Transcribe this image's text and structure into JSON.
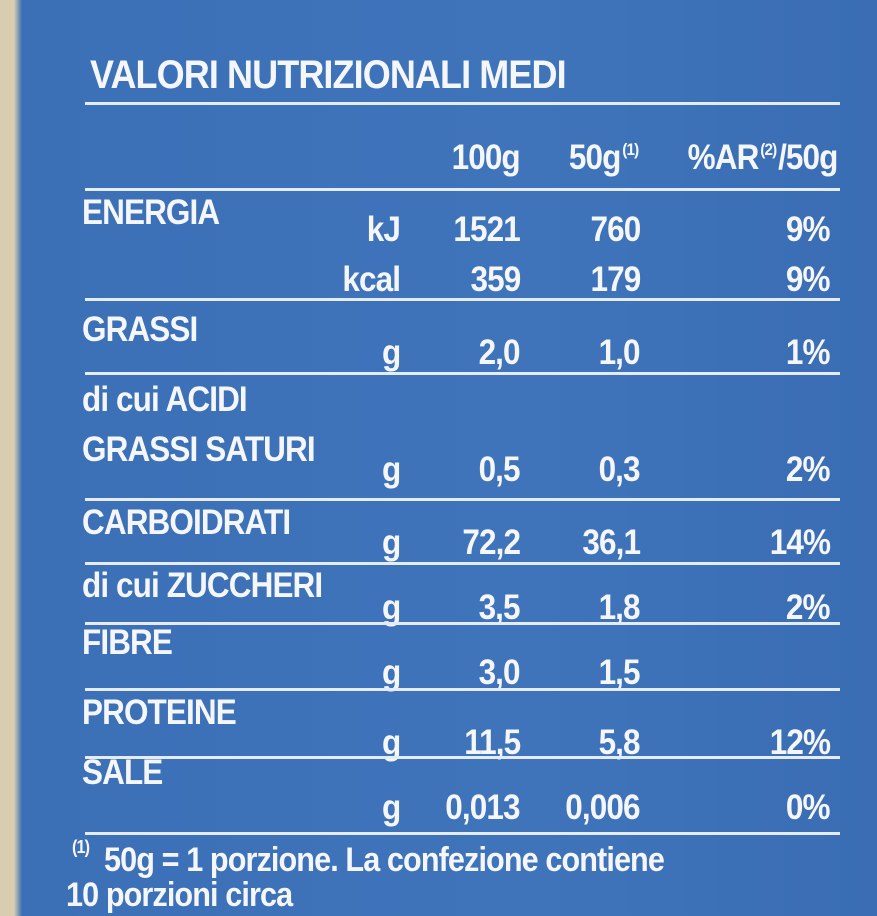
{
  "header": {
    "title": "VALORI NUTRIZIONALI MEDI"
  },
  "table": {
    "columns": [
      {
        "text": "100g"
      },
      {
        "text": "50g",
        "sup": "(1)"
      },
      {
        "text": "%AR",
        "sup": "(2)",
        "after": "/50g"
      }
    ],
    "rows": [
      {
        "name": [
          "ENERGIA"
        ],
        "lines": [
          {
            "unit": "kJ",
            "v100": "1521",
            "v50": "760",
            "ar": "9%"
          },
          {
            "unit": "kcal",
            "v100": "359",
            "v50": "179",
            "ar": "9%"
          }
        ]
      },
      {
        "name": [
          "GRASSI"
        ],
        "lines": [
          {
            "unit": "g",
            "v100": "2,0",
            "v50": "1,0",
            "ar": "1%"
          }
        ]
      },
      {
        "name": [
          "di cui ACIDI",
          "GRASSI SATURI"
        ],
        "lines": [
          {
            "unit": "g",
            "v100": "0,5",
            "v50": "0,3",
            "ar": "2%"
          }
        ]
      },
      {
        "name": [
          "CARBOIDRATI"
        ],
        "lines": [
          {
            "unit": "g",
            "v100": "72,2",
            "v50": "36,1",
            "ar": "14%"
          }
        ]
      },
      {
        "name": [
          "di cui ZUCCHERI"
        ],
        "lines": [
          {
            "unit": "g",
            "v100": "3,5",
            "v50": "1,8",
            "ar": "2%"
          }
        ]
      },
      {
        "name": [
          "FIBRE"
        ],
        "lines": [
          {
            "unit": "g",
            "v100": "3,0",
            "v50": "1,5"
          }
        ]
      },
      {
        "name": [
          "PROTEINE"
        ],
        "lines": [
          {
            "unit": "g",
            "v100": "11,5",
            "v50": "5,8",
            "ar": "12%"
          }
        ]
      },
      {
        "name": [
          "SALE"
        ],
        "lines": [
          {
            "unit": "g",
            "v100": "0,013",
            "v50": "0,006",
            "ar": "0%"
          }
        ]
      }
    ]
  },
  "footnote": {
    "mark": "(1)",
    "lines": [
      "50g = 1 porzione. La confezione contiene",
      "10 porzioni circa"
    ]
  }
}
